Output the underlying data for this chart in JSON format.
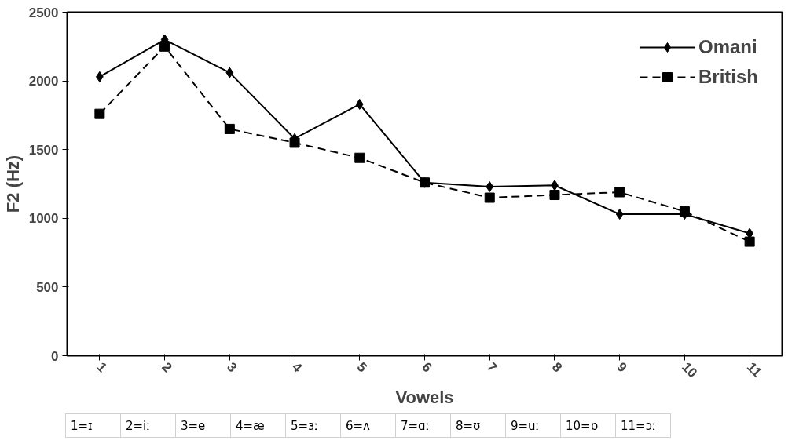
{
  "chart_data": {
    "type": "line",
    "xlabel": "Vowels",
    "ylabel": "F2 (Hz)",
    "categories": [
      "1",
      "2",
      "3",
      "4",
      "5",
      "6",
      "7",
      "8",
      "9",
      "10",
      "11"
    ],
    "series": [
      {
        "name": "Omani",
        "color": "#000000",
        "marker": "diamond",
        "line_style": "solid",
        "values": [
          2030,
          2300,
          2060,
          1580,
          1830,
          1260,
          1230,
          1240,
          1030,
          1030,
          890
        ]
      },
      {
        "name": "British",
        "color": "#000000",
        "marker": "square",
        "line_style": "dashed",
        "values": [
          1760,
          2250,
          1650,
          1550,
          1440,
          1260,
          1150,
          1170,
          1190,
          1050,
          830
        ]
      }
    ],
    "ylim": [
      0,
      2500
    ],
    "yticks": [
      0,
      500,
      1000,
      1500,
      2000,
      2500
    ],
    "grid": false,
    "legend": "top right",
    "annotations": [
      "1=ɪ",
      "2=iː",
      "3=e",
      "4=æ",
      "5=ɜː",
      "6=ʌ",
      "7=ɑː",
      "8=ʊ",
      "9=uː",
      "10=ɒ",
      "11=ɔː"
    ]
  }
}
